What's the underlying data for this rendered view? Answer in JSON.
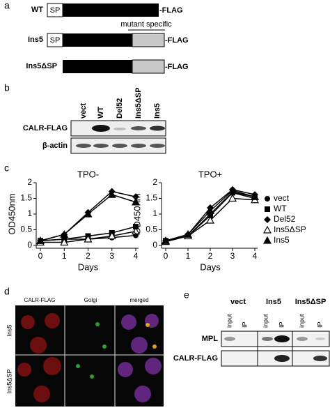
{
  "panel_labels": [
    "a",
    "b",
    "c",
    "d",
    "e"
  ],
  "constructs": {
    "annotation": "mutant specific",
    "rows": [
      {
        "name": "WT",
        "sp": "SP",
        "tag": "-FLAG"
      },
      {
        "name": "Ins5",
        "sp": "SP",
        "tag": "-FLAG"
      },
      {
        "name": "Ins5ΔSP",
        "tag": "-FLAG"
      }
    ]
  },
  "blot_b": {
    "lanes": [
      "vect",
      "WT",
      "Del52",
      "Ins5ΔSP",
      "Ins5"
    ],
    "rows": [
      "CALR-FLAG",
      "β-actin"
    ]
  },
  "chart_data": [
    {
      "type": "line",
      "title": "TPO-",
      "xlabel": "Days",
      "ylabel": "OD450nm",
      "x": [
        0,
        1,
        2,
        3,
        4
      ],
      "xlim": [
        0,
        4
      ],
      "xticks": [
        0,
        1,
        2,
        3,
        4
      ],
      "ylim": [
        0,
        2
      ],
      "yticks": [
        0,
        0.5,
        1,
        1.5,
        2
      ],
      "series": [
        {
          "marker": "circle",
          "values": [
            0.15,
            0.2,
            0.2,
            0.25,
            0.32
          ]
        },
        {
          "marker": "square",
          "values": [
            0.15,
            0.2,
            0.3,
            0.4,
            0.6
          ]
        },
        {
          "marker": "diamond",
          "values": [
            0.15,
            0.35,
            1.05,
            1.72,
            1.55
          ]
        },
        {
          "marker": "open-triangle",
          "values": [
            0.1,
            0.1,
            0.2,
            0.3,
            0.45
          ]
        },
        {
          "marker": "triangle",
          "values": [
            0.15,
            0.35,
            1.0,
            1.62,
            1.38
          ]
        }
      ]
    },
    {
      "type": "line",
      "title": "TPO+",
      "xlabel": "Days",
      "ylabel": "OD450nm",
      "x": [
        0,
        1,
        2,
        3,
        4
      ],
      "xlim": [
        0,
        4
      ],
      "xticks": [
        0,
        1,
        2,
        3,
        4
      ],
      "ylim": [
        0,
        2
      ],
      "yticks": [
        0,
        0.5,
        1,
        1.5,
        2
      ],
      "series": [
        {
          "name": "vect",
          "marker": "circle",
          "values": [
            0.15,
            0.3,
            1.0,
            1.7,
            1.55
          ]
        },
        {
          "name": "WT",
          "marker": "square",
          "values": [
            0.15,
            0.3,
            0.95,
            1.68,
            1.5
          ]
        },
        {
          "name": "Del52",
          "marker": "diamond",
          "values": [
            0.15,
            0.35,
            1.2,
            1.78,
            1.62
          ]
        },
        {
          "name": "Ins5ΔSP",
          "marker": "open-triangle",
          "values": [
            0.12,
            0.3,
            0.8,
            1.5,
            1.45
          ]
        },
        {
          "name": "Ins5",
          "marker": "triangle",
          "values": [
            0.15,
            0.35,
            1.1,
            1.75,
            1.55
          ]
        }
      ]
    }
  ],
  "microscopy": {
    "columns": [
      "CALR-FLAG",
      "Golgi",
      "merged"
    ],
    "rows": [
      "Ins5",
      "Ins5ΔSP"
    ]
  },
  "blot_e": {
    "groups": [
      "vect",
      "Ins5",
      "Ins5ΔSP"
    ],
    "lanes": [
      "input",
      "IP"
    ],
    "rows": [
      "MPL",
      "CALR-FLAG"
    ]
  }
}
